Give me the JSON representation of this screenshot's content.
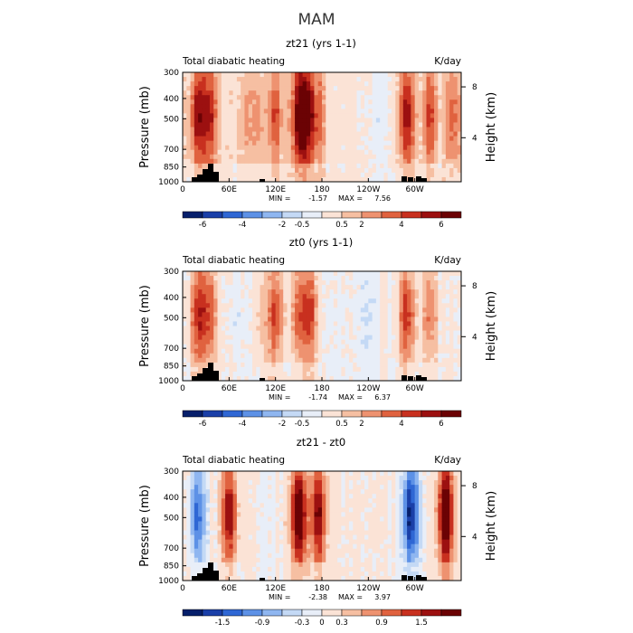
{
  "figure": {
    "title": "MAM",
    "variable_label": "Total diabatic heating",
    "units": "K/day",
    "left_axis_label": "Pressure (mb)",
    "right_axis_label": "Height (km)"
  },
  "chart_data": [
    {
      "type": "heatmap",
      "title": "zt21 (yrs 1-1)",
      "subtitle_left": "Total diabatic heating",
      "subtitle_right": "K/day",
      "xlabel": "",
      "ylabel": "Pressure (mb)",
      "ylabel_right": "Height (km)",
      "x_ticks": [
        "0",
        "60E",
        "120E",
        "180",
        "120W",
        "60W"
      ],
      "y_ticks": [
        "300",
        "400",
        "500",
        "700",
        "850",
        "1000"
      ],
      "y_right_ticks": [
        "8",
        "4"
      ],
      "stats": {
        "min_label": "MIN =",
        "min": "-1.57",
        "max_label": "MAX =",
        "max": "7.56"
      },
      "colorbar_ticks": [
        "-6",
        "-4",
        "-2",
        "-0.5",
        "0.5",
        "2",
        "4",
        "6"
      ],
      "features": [
        {
          "lon": 20,
          "value": 5.5
        },
        {
          "lon": 35,
          "value": 4.5
        },
        {
          "lon": 85,
          "value": 2.0
        },
        {
          "lon": 100,
          "value": 1.8
        },
        {
          "lon": 120,
          "value": 3.5
        },
        {
          "lon": 150,
          "value": 5.5
        },
        {
          "lon": 160,
          "value": 6.5
        },
        {
          "lon": 175,
          "value": 3.0
        },
        {
          "lon": 230,
          "value": -0.8
        },
        {
          "lon": 255,
          "value": -1.2
        },
        {
          "lon": 290,
          "value": 5.5
        },
        {
          "lon": 320,
          "value": 4.0
        },
        {
          "lon": 350,
          "value": 3.5
        }
      ]
    },
    {
      "type": "heatmap",
      "title": "zt0 (yrs 1-1)",
      "subtitle_left": "Total diabatic heating",
      "subtitle_right": "K/day",
      "xlabel": "",
      "ylabel": "Pressure (mb)",
      "ylabel_right": "Height (km)",
      "x_ticks": [
        "0",
        "60E",
        "120E",
        "180",
        "120W",
        "60W"
      ],
      "y_ticks": [
        "300",
        "400",
        "500",
        "700",
        "850",
        "1000"
      ],
      "y_right_ticks": [
        "8",
        "4"
      ],
      "stats": {
        "min_label": "MIN =",
        "min": "-1.74",
        "max_label": "MAX =",
        "max": "6.37"
      },
      "colorbar_ticks": [
        "-6",
        "-4",
        "-2",
        "-0.5",
        "0.5",
        "2",
        "4",
        "6"
      ],
      "features": [
        {
          "lon": 20,
          "value": 5.0
        },
        {
          "lon": 35,
          "value": 4.0
        },
        {
          "lon": 70,
          "value": -1.0
        },
        {
          "lon": 100,
          "value": 1.5
        },
        {
          "lon": 120,
          "value": 4.5
        },
        {
          "lon": 150,
          "value": 4.0
        },
        {
          "lon": 165,
          "value": 4.5
        },
        {
          "lon": 240,
          "value": -1.0
        },
        {
          "lon": 290,
          "value": 5.0
        },
        {
          "lon": 320,
          "value": 3.0
        }
      ]
    },
    {
      "type": "heatmap",
      "title": "zt21 - zt0",
      "subtitle_left": "Total diabatic heating",
      "subtitle_right": "K/day",
      "xlabel": "",
      "ylabel": "Pressure (mb)",
      "ylabel_right": "Height (km)",
      "x_ticks": [
        "0",
        "60E",
        "120E",
        "180",
        "120W",
        "60W"
      ],
      "y_ticks": [
        "300",
        "400",
        "500",
        "700",
        "850",
        "1000"
      ],
      "y_right_ticks": [
        "8",
        "4"
      ],
      "stats": {
        "min_label": "MIN =",
        "min": "-2.38",
        "max_label": "MAX =",
        "max": "3.97"
      },
      "colorbar_ticks": [
        "-1.5",
        "-0.9",
        "-0.3",
        "0",
        "0.3",
        "0.9",
        "1.5"
      ],
      "features": [
        {
          "lon": 20,
          "value": -1.5
        },
        {
          "lon": 60,
          "value": 2.0
        },
        {
          "lon": 150,
          "value": 2.5
        },
        {
          "lon": 175,
          "value": 2.0
        },
        {
          "lon": 295,
          "value": -2.0
        },
        {
          "lon": 340,
          "value": 2.5
        }
      ]
    }
  ]
}
